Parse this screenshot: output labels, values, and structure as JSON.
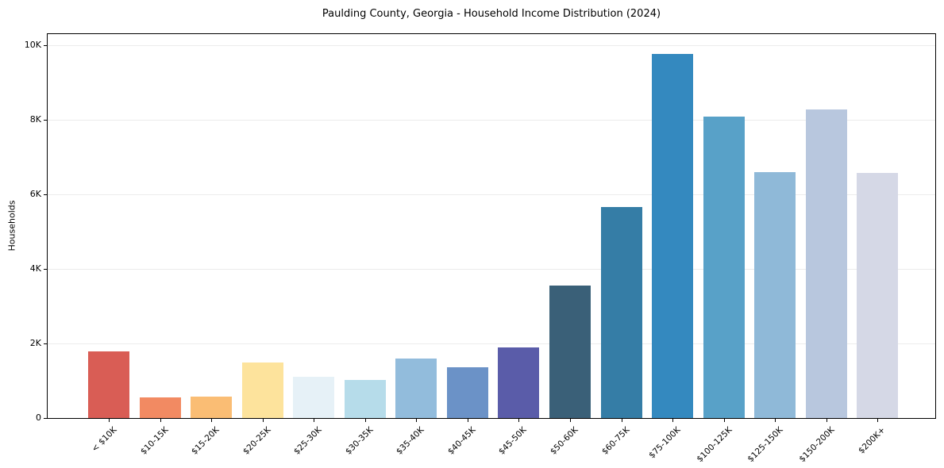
{
  "chart_data": {
    "type": "bar",
    "title": "Paulding County, Georgia - Household Income Distribution (2024)",
    "xlabel": "",
    "ylabel": "Households",
    "categories": [
      "< $10K",
      "$10-15K",
      "$15-20K",
      "$20-25K",
      "$25-30K",
      "$30-35K",
      "$35-40K",
      "$40-45K",
      "$45-50K",
      "$50-60K",
      "$60-75K",
      "$75-100K",
      "$100-125K",
      "$125-150K",
      "$150-200K",
      "$200K+"
    ],
    "values": [
      1790,
      560,
      580,
      1490,
      1110,
      1020,
      1600,
      1370,
      1890,
      3550,
      5670,
      9770,
      8090,
      6600,
      8280,
      6580
    ],
    "bar_colors": [
      "#d95d55",
      "#f28a62",
      "#fabd74",
      "#fde39c",
      "#e6f1f7",
      "#b6dcea",
      "#92bcdc",
      "#6b92c7",
      "#5a5ca9",
      "#3a6078",
      "#357da6",
      "#3489bf",
      "#58a1c8",
      "#8fb9d8",
      "#b8c7de",
      "#d5d8e6"
    ],
    "ylim": [
      0,
      10300
    ],
    "yticks": [
      0,
      2000,
      4000,
      6000,
      8000,
      10000
    ],
    "ytick_labels": [
      "0",
      "2K",
      "4K",
      "6K",
      "8K",
      "10K"
    ],
    "grid": true,
    "legend_position": "none",
    "colors": {
      "background": "#ffffff",
      "gridline": "#ececec",
      "spine": "#000000",
      "text": "#000000"
    }
  }
}
